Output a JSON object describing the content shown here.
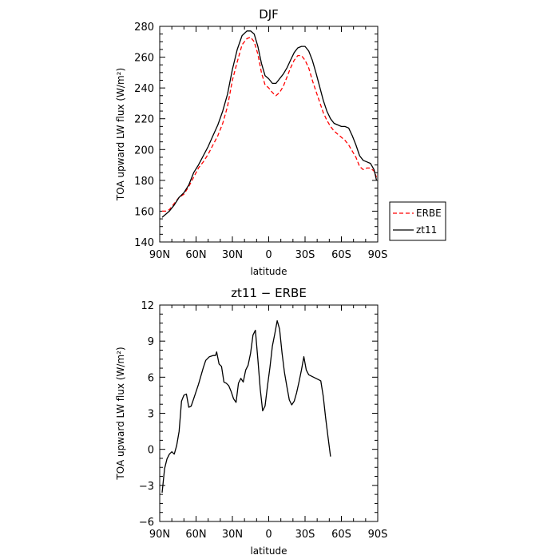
{
  "chart_data": [
    {
      "type": "line",
      "title": "DJF",
      "xlabel": "latitude",
      "ylabel": "TOA upward LW flux (W/m²)",
      "xlim": [
        -90,
        90
      ],
      "ylim": [
        140,
        280
      ],
      "x_ticks": [
        -90,
        -60,
        -30,
        0,
        30,
        60,
        90
      ],
      "x_tick_labels": [
        "90N",
        "60N",
        "30N",
        "0",
        "30S",
        "60S",
        "90S"
      ],
      "y_ticks": [
        140,
        160,
        180,
        200,
        220,
        240,
        260,
        280
      ],
      "y_tick_labels": [
        "140",
        "160",
        "180",
        "200",
        "220",
        "240",
        "260",
        "280"
      ],
      "legend_position": "right-bottom outside",
      "series": [
        {
          "name": "ERBE",
          "color": "#ff0000",
          "style": "dashed",
          "points": [
            [
              -88,
              160
            ],
            [
              -85,
              160
            ],
            [
              -82,
              161
            ],
            [
              -78,
              165
            ],
            [
              -74,
              169
            ],
            [
              -70,
              171
            ],
            [
              -66,
              176
            ],
            [
              -62,
              182
            ],
            [
              -58,
              188
            ],
            [
              -54,
              192
            ],
            [
              -50,
              197
            ],
            [
              -46,
              203
            ],
            [
              -42,
              209
            ],
            [
              -38,
              217
            ],
            [
              -34,
              228
            ],
            [
              -30,
              245
            ],
            [
              -26,
              257
            ],
            [
              -22,
              268
            ],
            [
              -18,
              272
            ],
            [
              -15,
              273
            ],
            [
              -12,
              270
            ],
            [
              -9,
              262
            ],
            [
              -6,
              250
            ],
            [
              -3,
              242
            ],
            [
              0,
              240
            ],
            [
              3,
              237
            ],
            [
              6,
              235
            ],
            [
              9,
              237
            ],
            [
              12,
              241
            ],
            [
              15,
              247
            ],
            [
              18,
              253
            ],
            [
              21,
              258
            ],
            [
              24,
              261
            ],
            [
              27,
              261
            ],
            [
              30,
              258
            ],
            [
              33,
              253
            ],
            [
              36,
              245
            ],
            [
              39,
              238
            ],
            [
              42,
              231
            ],
            [
              45,
              224
            ],
            [
              48,
              219
            ],
            [
              51,
              215
            ],
            [
              54,
              212
            ],
            [
              57,
              210
            ],
            [
              60,
              208
            ],
            [
              63,
              206
            ],
            [
              66,
              203
            ],
            [
              69,
              199
            ],
            [
              72,
              195
            ],
            [
              75,
              189
            ],
            [
              78,
              187
            ],
            [
              81,
              188
            ],
            [
              84,
              188
            ],
            [
              87,
              186
            ],
            [
              89,
              182
            ]
          ]
        },
        {
          "name": "zt11",
          "color": "#000000",
          "style": "solid",
          "points": [
            [
              -88,
              156
            ],
            [
              -85,
              158
            ],
            [
              -82,
              160
            ],
            [
              -78,
              164
            ],
            [
              -74,
              169
            ],
            [
              -70,
              172
            ],
            [
              -66,
              177
            ],
            [
              -62,
              185
            ],
            [
              -58,
              190
            ],
            [
              -54,
              196
            ],
            [
              -50,
              202
            ],
            [
              -46,
              209
            ],
            [
              -42,
              216
            ],
            [
              -38,
              225
            ],
            [
              -34,
              236
            ],
            [
              -30,
              252
            ],
            [
              -26,
              265
            ],
            [
              -22,
              274
            ],
            [
              -18,
              277
            ],
            [
              -15,
              277
            ],
            [
              -12,
              275
            ],
            [
              -9,
              267
            ],
            [
              -6,
              256
            ],
            [
              -3,
              248
            ],
            [
              0,
              246
            ],
            [
              3,
              243
            ],
            [
              6,
              243
            ],
            [
              9,
              246
            ],
            [
              12,
              249
            ],
            [
              15,
              253
            ],
            [
              18,
              258
            ],
            [
              21,
              263
            ],
            [
              24,
              266
            ],
            [
              27,
              267
            ],
            [
              30,
              267
            ],
            [
              33,
              264
            ],
            [
              36,
              258
            ],
            [
              39,
              250
            ],
            [
              42,
              241
            ],
            [
              45,
              232
            ],
            [
              48,
              225
            ],
            [
              51,
              220
            ],
            [
              54,
              217
            ],
            [
              57,
              216
            ],
            [
              60,
              215
            ],
            [
              63,
              215
            ],
            [
              66,
              214
            ],
            [
              69,
              209
            ],
            [
              72,
              203
            ],
            [
              75,
              196
            ],
            [
              78,
              193
            ],
            [
              81,
              192
            ],
            [
              84,
              191
            ],
            [
              87,
              187
            ],
            [
              89,
              180
            ]
          ]
        }
      ]
    },
    {
      "type": "line",
      "title": "zt11 − ERBE",
      "xlabel": "latitude",
      "ylabel": "TOA upward LW flux (W/m²)",
      "xlim": [
        -90,
        90
      ],
      "ylim": [
        -6,
        12
      ],
      "x_ticks": [
        -90,
        -60,
        -30,
        0,
        30,
        60,
        90
      ],
      "x_tick_labels": [
        "90N",
        "60N",
        "30N",
        "0",
        "30S",
        "60S",
        "90S"
      ],
      "y_ticks": [
        -6,
        -3,
        0,
        3,
        6,
        9,
        12
      ],
      "y_tick_labels": [
        "−6",
        "−3",
        "0",
        "3",
        "6",
        "9",
        "12"
      ],
      "series": [
        {
          "name": "",
          "color": "#000000",
          "style": "solid",
          "points": [
            [
              -88,
              -3.6
            ],
            [
              -86,
              -1.6
            ],
            [
              -84,
              -0.8
            ],
            [
              -82,
              -0.4
            ],
            [
              -80,
              -0.2
            ],
            [
              -78,
              -0.4
            ],
            [
              -76,
              0.3
            ],
            [
              -74,
              1.5
            ],
            [
              -72,
              4.0
            ],
            [
              -70,
              4.5
            ],
            [
              -68,
              4.6
            ],
            [
              -66,
              3.5
            ],
            [
              -64,
              3.6
            ],
            [
              -62,
              4.2
            ],
            [
              -58,
              5.4
            ],
            [
              -54,
              6.8
            ],
            [
              -52,
              7.4
            ],
            [
              -49,
              7.7
            ],
            [
              -46,
              7.8
            ],
            [
              -44,
              7.8
            ],
            [
              -43,
              8.1
            ],
            [
              -41,
              7.1
            ],
            [
              -39,
              6.9
            ],
            [
              -37,
              5.6
            ],
            [
              -35,
              5.5
            ],
            [
              -33,
              5.3
            ],
            [
              -31,
              4.8
            ],
            [
              -29,
              4.2
            ],
            [
              -27,
              3.9
            ],
            [
              -25,
              5.5
            ],
            [
              -23,
              5.9
            ],
            [
              -21,
              5.6
            ],
            [
              -19,
              6.6
            ],
            [
              -17,
              7.0
            ],
            [
              -15,
              8.0
            ],
            [
              -13,
              9.5
            ],
            [
              -11,
              9.9
            ],
            [
              -9,
              7.5
            ],
            [
              -7,
              5.0
            ],
            [
              -5,
              3.2
            ],
            [
              -3,
              3.6
            ],
            [
              -1,
              5.3
            ],
            [
              1,
              6.8
            ],
            [
              3,
              8.6
            ],
            [
              5,
              9.6
            ],
            [
              7,
              10.7
            ],
            [
              9,
              10.0
            ],
            [
              11,
              8.0
            ],
            [
              13,
              6.4
            ],
            [
              15,
              5.2
            ],
            [
              17,
              4.1
            ],
            [
              19,
              3.7
            ],
            [
              21,
              4.0
            ],
            [
              23,
              4.7
            ],
            [
              25,
              5.6
            ],
            [
              27,
              6.6
            ],
            [
              29,
              7.7
            ],
            [
              31,
              6.6
            ],
            [
              33,
              6.2
            ],
            [
              35,
              6.1
            ],
            [
              37,
              6.0
            ],
            [
              39,
              5.9
            ],
            [
              41,
              5.8
            ],
            [
              43,
              5.7
            ],
            [
              45,
              4.4
            ],
            [
              47,
              2.6
            ],
            [
              49,
              1.0
            ],
            [
              51,
              -0.6
            ]
          ]
        }
      ]
    }
  ]
}
